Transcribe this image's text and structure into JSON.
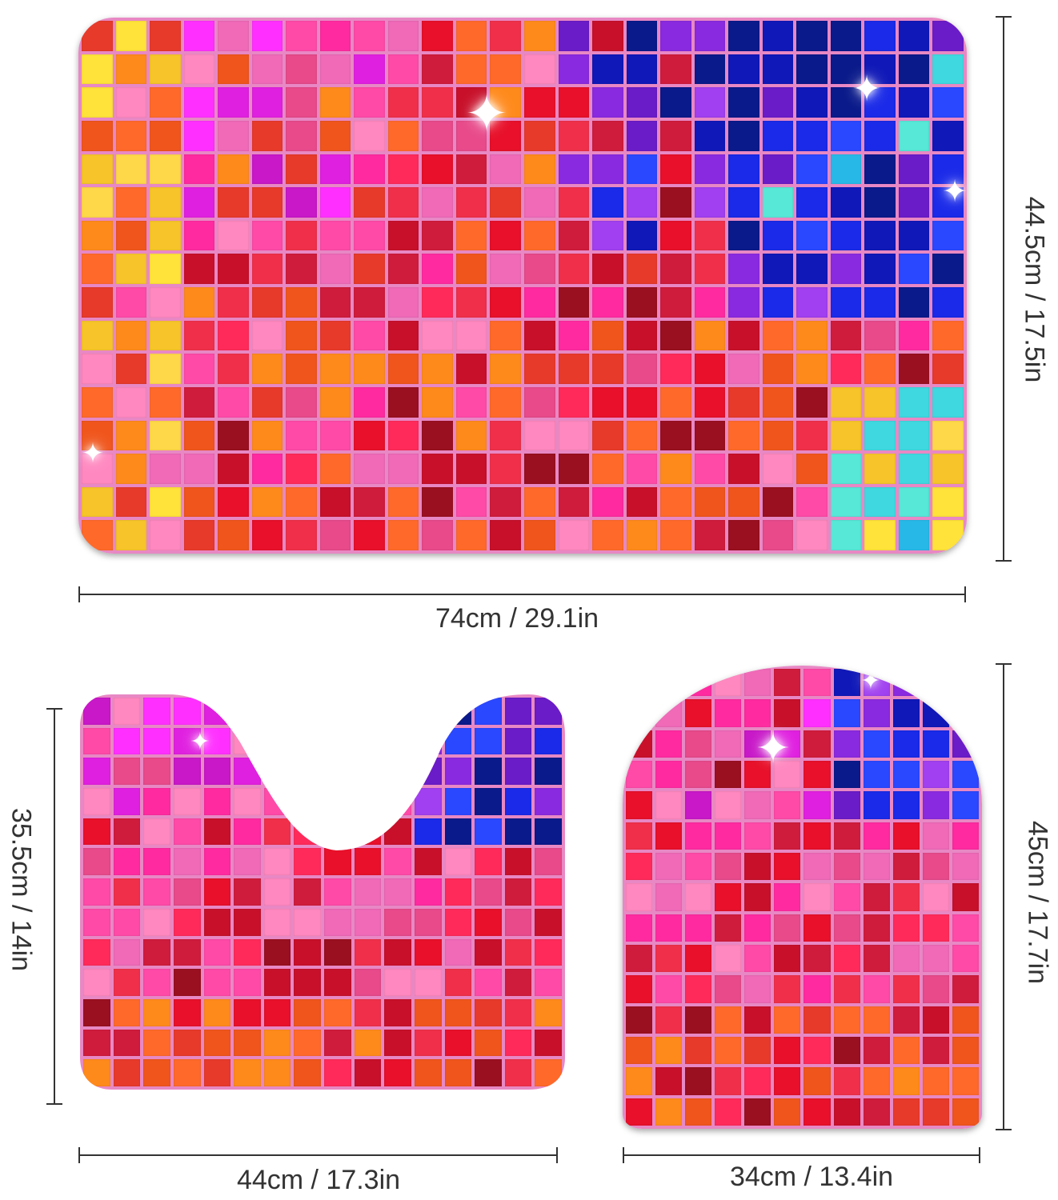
{
  "products": [
    {
      "id": "bath-mat",
      "width_label": "74cm / 29.1in",
      "height_label": "44.5cm / 17.5in"
    },
    {
      "id": "contour-mat",
      "width_label": "44cm / 17.3in",
      "height_label": "35.5cm / 14in"
    },
    {
      "id": "lid-cover",
      "width_label": "34cm / 13.4in",
      "height_label": "45cm / 17.7in"
    }
  ],
  "palette": {
    "yellow": [
      "#ffe33a",
      "#f7c52a",
      "#ffd84a"
    ],
    "orange": [
      "#ff8a1c",
      "#f0561c",
      "#e83a2a",
      "#ff6a2a"
    ],
    "red": [
      "#e8102a",
      "#c8102a",
      "#f0304a",
      "#ff2a5a",
      "#d01c3c",
      "#9a1020"
    ],
    "pink": [
      "#ff4aa8",
      "#ff2aa0",
      "#f06ab8",
      "#ff88c0",
      "#e84a8a"
    ],
    "magenta": [
      "#e020e0",
      "#c818c8",
      "#ff30ff"
    ],
    "purple": [
      "#8a2ae0",
      "#6a1cc8",
      "#a040f0"
    ],
    "blue": [
      "#1a2ae8",
      "#1018b8",
      "#2a48ff",
      "#0a1a8a"
    ],
    "cyan": [
      "#40d8e0",
      "#58e8d8",
      "#28b8e8"
    ],
    "white": [
      "#ffffff",
      "#f8f0f8"
    ]
  }
}
